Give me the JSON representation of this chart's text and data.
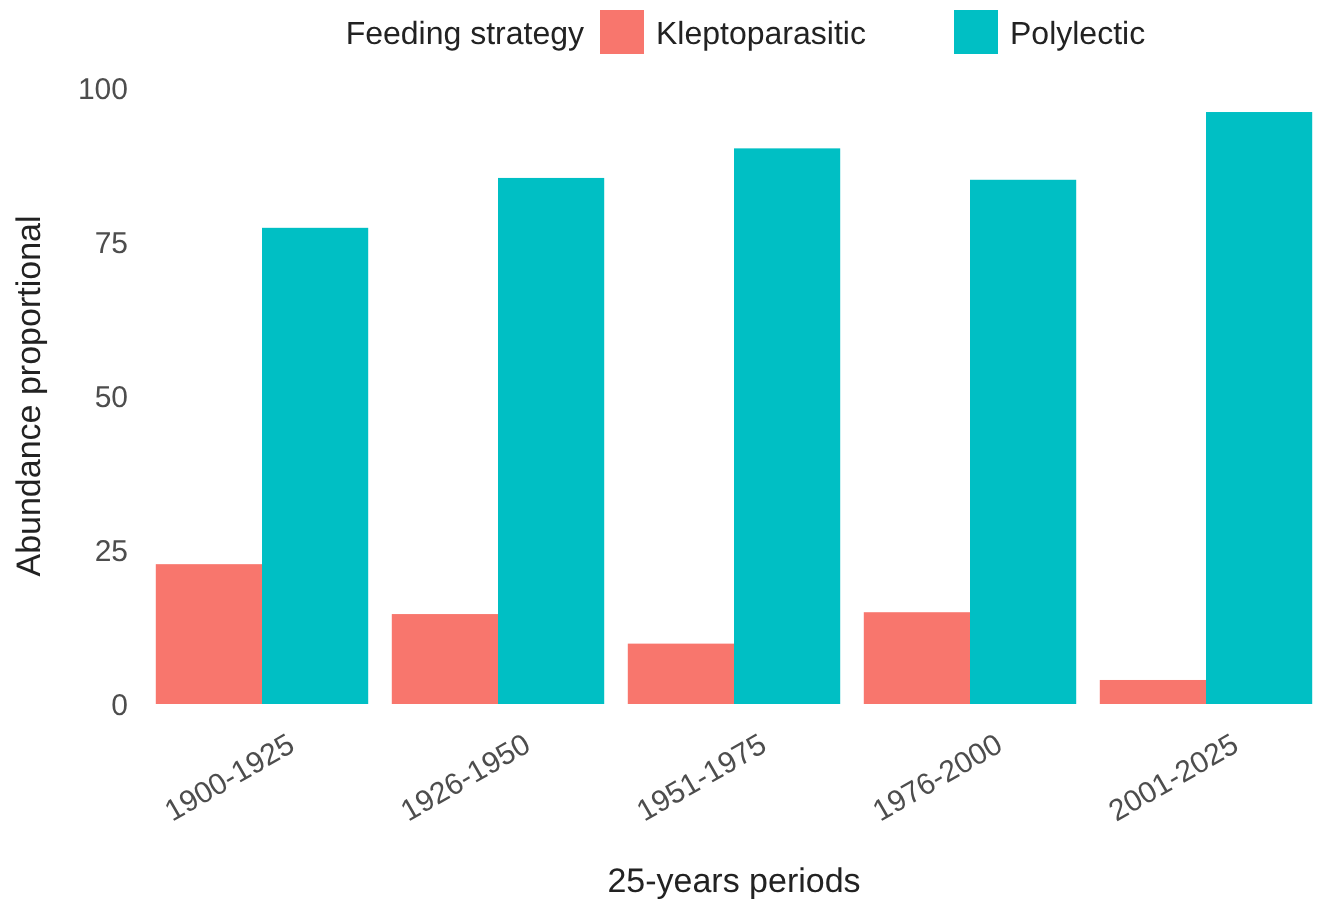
{
  "chart_data": {
    "type": "bar",
    "xlabel": "25-years periods",
    "ylabel": "Abundance proportional",
    "legend_title": "Feeding strategy",
    "legend": "top",
    "categories": [
      "1900-1925",
      "1926-1950",
      "1951-1975",
      "1976-2000",
      "2001-2025"
    ],
    "series": [
      {
        "name": "Kleptoparasitic",
        "color": "#f8766d",
        "values": [
          22.7,
          14.6,
          9.8,
          14.9,
          3.9
        ]
      },
      {
        "name": "Polylectic",
        "color": "#00bfc4",
        "values": [
          77.3,
          85.4,
          90.2,
          85.1,
          96.1
        ]
      }
    ],
    "ylim": [
      0,
      100
    ],
    "yticks": [
      0,
      25,
      50,
      75,
      100
    ],
    "grid": false
  }
}
